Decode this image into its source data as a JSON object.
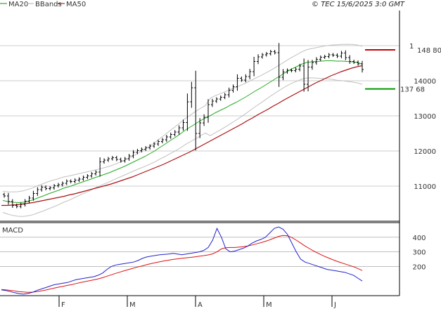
{
  "header": {
    "legend": [
      {
        "label": "MA20",
        "color": "#009900"
      },
      {
        "label": "BBands",
        "color": "#b0b0b0"
      },
      {
        "label": "MA50",
        "color": "#990000"
      }
    ],
    "source": "© TEC 15/6/2025 3:0 GMT"
  },
  "colors": {
    "price": "#000000",
    "ma20": "#22aa22",
    "ma50": "#aa1111",
    "bbands": "#c0c0c0",
    "macd": "#2222cc",
    "signal": "#dd1111",
    "resistance": "#cc0000",
    "support": "#009900",
    "grid": "#999999"
  },
  "chart_data": [
    {
      "type": "ohlc",
      "panel": "price",
      "xlabels": [
        "F",
        "M",
        "A",
        "M",
        "J"
      ],
      "ylim": [
        100000,
        160000
      ],
      "y_ticks": [
        110000,
        120000,
        130000,
        140000
      ],
      "y_tick_labels": [
        "11000",
        "12000",
        "13000",
        "14000"
      ],
      "top_tick_label": "1",
      "levels": [
        {
          "name": "resistance",
          "value": 148800,
          "label": "148 80"
        },
        {
          "name": "support",
          "value": 137680,
          "label": "137 68"
        }
      ],
      "closes": [
        107200,
        105600,
        104500,
        104200,
        104800,
        105700,
        106600,
        107900,
        109000,
        109700,
        109300,
        109500,
        110100,
        110400,
        110800,
        111400,
        111300,
        111700,
        112000,
        112500,
        112900,
        113500,
        114000,
        116900,
        117400,
        117800,
        118100,
        117600,
        117200,
        117800,
        118600,
        119600,
        120100,
        120500,
        120900,
        121400,
        122000,
        122700,
        123200,
        124000,
        124700,
        125400,
        126600,
        128100,
        134000,
        138000,
        125000,
        128000,
        129600,
        133200,
        134200,
        134800,
        135300,
        136000,
        137300,
        138300,
        140700,
        140200,
        141200,
        142600,
        145500,
        146800,
        147400,
        147700,
        148300,
        148000,
        141000,
        142500,
        143000,
        142900,
        143300,
        144200,
        139000,
        143900,
        145200,
        146100,
        146700,
        146900,
        147400,
        147300,
        147000,
        147900,
        146600,
        145500,
        145300,
        144800,
        143200
      ],
      "ma20": [
        105900,
        105600,
        105400,
        105300,
        105400,
        105700,
        106100,
        106700,
        107200,
        107800,
        108300,
        108800,
        109400,
        109800,
        110300,
        110800,
        111300,
        111800,
        112300,
        112800,
        113300,
        113800,
        114400,
        115000,
        115600,
        116300,
        117000,
        117700,
        118400,
        119200,
        120000,
        121000,
        121900,
        122900,
        123800,
        124800,
        125900,
        126800,
        127700,
        128600,
        129400,
        130100,
        130900,
        131600,
        132300,
        133100,
        133800,
        134600,
        135400,
        136300,
        137200,
        138000,
        138900,
        139800,
        140700,
        141600,
        142500,
        143300,
        144000,
        144700,
        145200,
        145400,
        145500,
        145600,
        145700,
        145700,
        145600,
        145600,
        145500,
        145400,
        145200,
        144800
      ],
      "ma50": [
        104500,
        104500,
        104600,
        104700,
        104900,
        105100,
        105300,
        105600,
        105900,
        106200,
        106500,
        106800,
        107100,
        107500,
        107800,
        108200,
        108600,
        109000,
        109400,
        109800,
        110200,
        110600,
        111100,
        111600,
        112100,
        112600,
        113200,
        113800,
        114400,
        115000,
        115600,
        116200,
        116900,
        117600,
        118300,
        119000,
        119700,
        120500,
        121300,
        122100,
        122900,
        123700,
        124500,
        125300,
        126100,
        126900,
        127700,
        128600,
        129400,
        130300,
        131100,
        131900,
        132800,
        133600,
        134500,
        135300,
        136100,
        136900,
        137700,
        138500,
        139300,
        140000,
        140700,
        141400,
        142000,
        142600,
        143100,
        143600,
        144000,
        144300
      ]
    },
    {
      "type": "line",
      "panel": "macd",
      "title": "MACD",
      "ylim": [
        0,
        500
      ],
      "y_ticks": [
        200,
        300,
        400
      ],
      "y_tick_labels": [
        "200",
        "300",
        "400"
      ],
      "series": [
        {
          "values": [
            40,
            35,
            28,
            20,
            14,
            10,
            15,
            22,
            35,
            45,
            55,
            65,
            75,
            80,
            85,
            90,
            100,
            110,
            115,
            120,
            125,
            130,
            140,
            155,
            180,
            200,
            210,
            215,
            220,
            225,
            230,
            240,
            255,
            265,
            270,
            275,
            280,
            282,
            285,
            290,
            285,
            280,
            285,
            290,
            295,
            300,
            310,
            330,
            380,
            460,
            400,
            320,
            300,
            305,
            315,
            325,
            340,
            360,
            375,
            385,
            400,
            430,
            460,
            470,
            455,
            420,
            360,
            300,
            250,
            230,
            220,
            210,
            200,
            190,
            180,
            175,
            170,
            165,
            160,
            150,
            140,
            120,
            100
          ]
        },
        {
          "values": [
            42,
            40,
            36,
            32,
            28,
            25,
            23,
            24,
            27,
            32,
            38,
            45,
            52,
            58,
            64,
            70,
            76,
            83,
            90,
            96,
            102,
            108,
            115,
            123,
            133,
            143,
            153,
            162,
            171,
            180,
            188,
            196,
            204,
            212,
            219,
            226,
            232,
            238,
            243,
            248,
            252,
            256,
            259,
            262,
            266,
            270,
            274,
            279,
            286,
            300,
            320,
            328,
            330,
            330,
            332,
            335,
            340,
            347,
            355,
            363,
            372,
            382,
            394,
            406,
            412,
            410,
            398,
            380,
            360,
            340,
            322,
            305,
            290,
            275,
            262,
            250,
            238,
            228,
            218,
            208,
            198,
            186,
            172
          ]
        }
      ]
    }
  ]
}
